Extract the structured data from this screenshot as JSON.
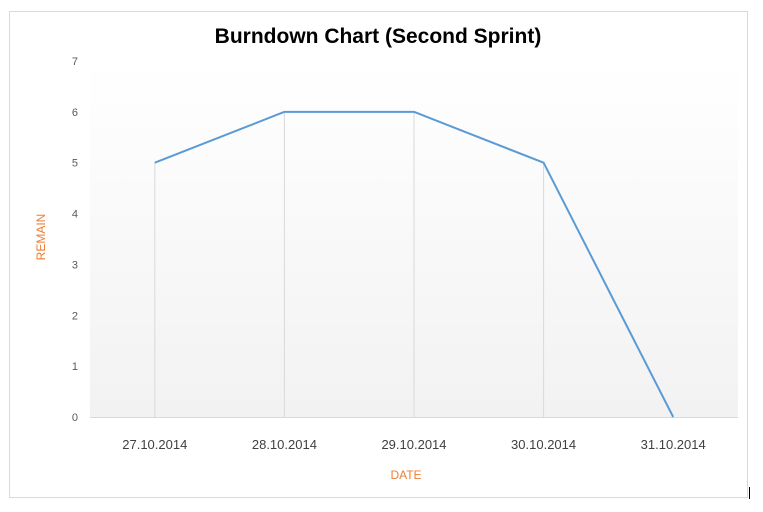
{
  "chart_data": {
    "type": "line",
    "title": "Burndown Chart (Second Sprint)",
    "xlabel": "DATE",
    "ylabel": "REMAIN",
    "categories": [
      "27.10.2014",
      "28.10.2014",
      "29.10.2014",
      "30.10.2014",
      "31.10.2014"
    ],
    "series": [
      {
        "values": [
          5,
          6,
          6,
          5,
          0
        ]
      }
    ],
    "ylim": [
      0,
      7
    ],
    "yticks": [
      "0",
      "1",
      "2",
      "3",
      "4",
      "5",
      "6",
      "7"
    ],
    "drop_lines": true,
    "legend": "none",
    "colors": {
      "line": "#5b9bd5",
      "axis_title": "#ed7d31",
      "plot_gradient_top": "#ffffff",
      "plot_gradient_bottom": "#f2f2f2",
      "drop_line": "#d9d9d9"
    }
  }
}
